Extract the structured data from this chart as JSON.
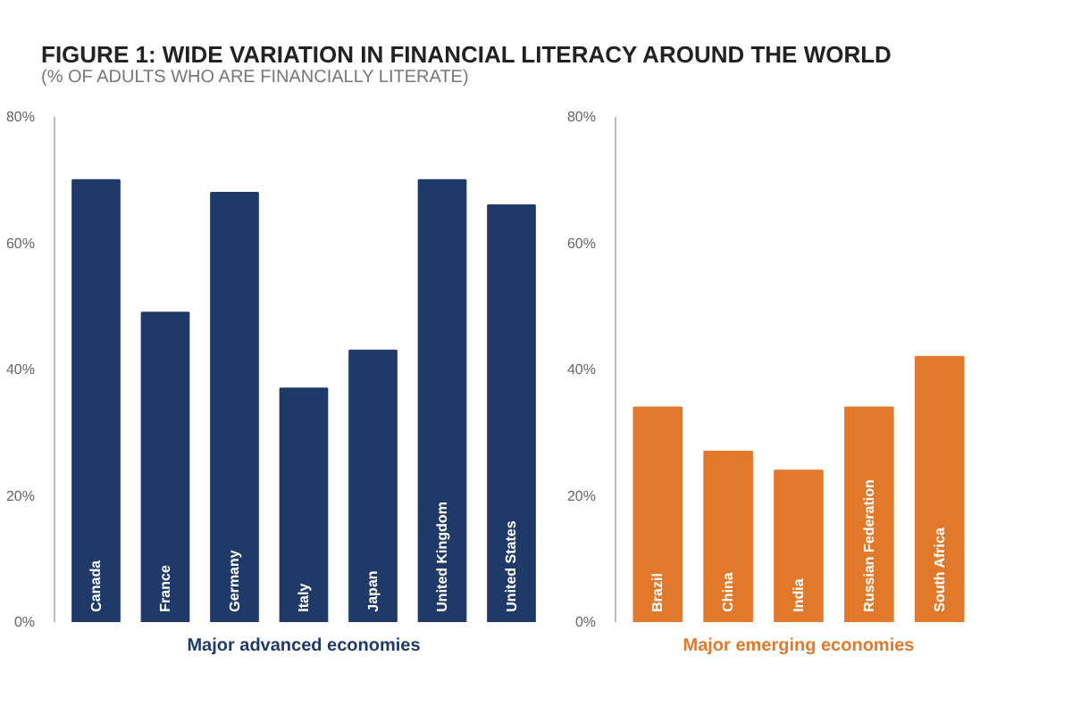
{
  "chart_data": [
    {
      "type": "bar",
      "title": "FIGURE 1: WIDE VARIATION IN FINANCIAL LITERACY AROUND THE WORLD",
      "subtitle": "(% OF ADULTS WHO ARE FINANCIALLY LITERATE)",
      "xlabel": "Major advanced economies",
      "categories": [
        "Canada",
        "France",
        "Germany",
        "Italy",
        "Japan",
        "United Kingdom",
        "United States"
      ],
      "series": [
        {
          "color": "#1f3a68",
          "values": [
            70,
            49,
            68,
            37,
            43,
            70,
            66
          ]
        }
      ],
      "ylim": [
        0,
        80
      ],
      "yticks": [
        {
          "value": 0,
          "label": "0%"
        },
        {
          "value": 20,
          "label": "20%"
        },
        {
          "value": 40,
          "label": "40%"
        },
        {
          "value": 60,
          "label": "60%"
        },
        {
          "value": 80,
          "label": "80%"
        }
      ]
    },
    {
      "type": "bar",
      "xlabel": "Major emerging economies",
      "categories": [
        "Brazil",
        "China",
        "India",
        "Russian Federation",
        "South Africa"
      ],
      "series": [
        {
          "color": "#e2782a",
          "values": [
            34,
            27,
            24,
            34,
            42
          ]
        }
      ],
      "ylim": [
        0,
        80
      ],
      "yticks": [
        {
          "value": 0,
          "label": "0%"
        },
        {
          "value": 20,
          "label": "20%"
        },
        {
          "value": 40,
          "label": "40%"
        },
        {
          "value": 60,
          "label": "60%"
        },
        {
          "value": 80,
          "label": "80%"
        }
      ]
    }
  ]
}
